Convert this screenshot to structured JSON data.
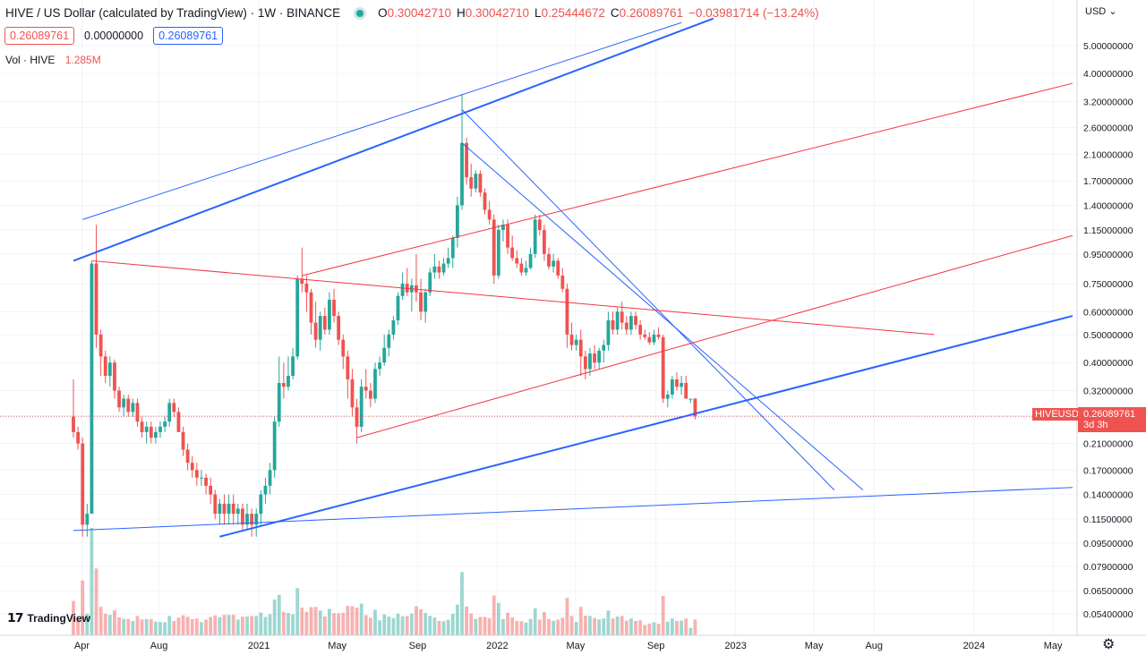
{
  "header": {
    "title": "HIVE / US Dollar (calculated by TradingView) · 1W · BINANCE",
    "o_label": "O",
    "o_value": "0.30042710",
    "h_label": "H",
    "h_value": "0.30042710",
    "l_label": "L",
    "l_value": "0.25444672",
    "c_label": "C",
    "c_value": "0.26089761",
    "change": "−0.03981714 (−13.24%)"
  },
  "boxes": {
    "sell": "0.26089761",
    "spread": "0.00000000",
    "buy": "0.26089761"
  },
  "volume": {
    "label": "Vol · HIVE",
    "value": "1.285M"
  },
  "logo": "TradingView",
  "axis": {
    "currency": "USD",
    "price_ticks": [
      "5.00000000",
      "4.00000000",
      "3.20000000",
      "2.60000000",
      "2.10000000",
      "1.70000000",
      "1.40000000",
      "1.15000000",
      "0.95000000",
      "0.75000000",
      "0.60000000",
      "0.50000000",
      "0.40000000",
      "0.32000000",
      "0.26000000",
      "0.21000000",
      "0.17000000",
      "0.14000000",
      "0.11500000",
      "0.09500000",
      "0.07900000",
      "0.06500000",
      "0.05400000"
    ],
    "time_ticks": [
      "Apr",
      "Aug",
      "2021",
      "May",
      "Sep",
      "2022",
      "May",
      "Sep",
      "2023",
      "May",
      "Aug",
      "2024",
      "May"
    ]
  },
  "last_price": {
    "symbol": "HIVEUSD",
    "price": "0.26089761",
    "countdown": "3d 3h"
  },
  "colors": {
    "up": "#26a69a",
    "down": "#ef5350",
    "trend_blue": "#2962ff",
    "trend_red": "#f23645"
  },
  "chart_data": {
    "type": "candlestick",
    "symbol": "HIVEUSD",
    "interval": "1W",
    "y_scale": "log",
    "y_range": [
      0.05,
      5.8
    ],
    "x_range": [
      "2020-03-23",
      "2024-05-31"
    ],
    "grid": true,
    "last_close": 0.26089761,
    "ohlc_weeks": [
      [
        "2020-03-23",
        0.26,
        0.35,
        0.22,
        0.23
      ],
      [
        "2020-03-30",
        0.23,
        0.24,
        0.2,
        0.21
      ],
      [
        "2020-04-06",
        0.21,
        0.22,
        0.1,
        0.11
      ],
      [
        "2020-04-13",
        0.11,
        0.13,
        0.1,
        0.12
      ],
      [
        "2020-04-20",
        0.12,
        0.9,
        0.12,
        0.88
      ],
      [
        "2020-04-27",
        0.88,
        1.2,
        0.45,
        0.5
      ],
      [
        "2020-05-04",
        0.5,
        0.52,
        0.36,
        0.42
      ],
      [
        "2020-05-11",
        0.42,
        0.44,
        0.34,
        0.36
      ],
      [
        "2020-05-18",
        0.36,
        0.42,
        0.33,
        0.4
      ],
      [
        "2020-05-25",
        0.4,
        0.41,
        0.3,
        0.32
      ],
      [
        "2020-06-01",
        0.32,
        0.33,
        0.27,
        0.28
      ],
      [
        "2020-06-08",
        0.28,
        0.31,
        0.26,
        0.3
      ],
      [
        "2020-06-15",
        0.3,
        0.31,
        0.26,
        0.27
      ],
      [
        "2020-06-22",
        0.27,
        0.3,
        0.26,
        0.29
      ],
      [
        "2020-06-29",
        0.29,
        0.3,
        0.24,
        0.25
      ],
      [
        "2020-07-06",
        0.25,
        0.26,
        0.22,
        0.23
      ],
      [
        "2020-07-13",
        0.23,
        0.25,
        0.21,
        0.24
      ],
      [
        "2020-07-20",
        0.24,
        0.25,
        0.21,
        0.22
      ],
      [
        "2020-07-27",
        0.22,
        0.24,
        0.21,
        0.23
      ],
      [
        "2020-08-03",
        0.23,
        0.25,
        0.22,
        0.24
      ],
      [
        "2020-08-10",
        0.24,
        0.26,
        0.23,
        0.25
      ],
      [
        "2020-08-17",
        0.25,
        0.3,
        0.24,
        0.29
      ],
      [
        "2020-08-24",
        0.29,
        0.3,
        0.26,
        0.27
      ],
      [
        "2020-08-31",
        0.27,
        0.28,
        0.23,
        0.23
      ],
      [
        "2020-09-07",
        0.23,
        0.24,
        0.19,
        0.2
      ],
      [
        "2020-09-14",
        0.2,
        0.21,
        0.17,
        0.18
      ],
      [
        "2020-09-21",
        0.18,
        0.19,
        0.16,
        0.17
      ],
      [
        "2020-09-28",
        0.17,
        0.18,
        0.15,
        0.16
      ],
      [
        "2020-10-05",
        0.16,
        0.17,
        0.15,
        0.16
      ],
      [
        "2020-10-12",
        0.16,
        0.165,
        0.14,
        0.15
      ],
      [
        "2020-10-19",
        0.15,
        0.16,
        0.13,
        0.14
      ],
      [
        "2020-10-26",
        0.14,
        0.145,
        0.115,
        0.12
      ],
      [
        "2020-11-02",
        0.12,
        0.135,
        0.11,
        0.13
      ],
      [
        "2020-11-09",
        0.13,
        0.14,
        0.11,
        0.12
      ],
      [
        "2020-11-16",
        0.12,
        0.14,
        0.11,
        0.13
      ],
      [
        "2020-11-23",
        0.13,
        0.14,
        0.11,
        0.12
      ],
      [
        "2020-11-30",
        0.12,
        0.13,
        0.11,
        0.125
      ],
      [
        "2020-12-07",
        0.125,
        0.13,
        0.105,
        0.11
      ],
      [
        "2020-12-14",
        0.11,
        0.13,
        0.105,
        0.12
      ],
      [
        "2020-12-21",
        0.12,
        0.125,
        0.1,
        0.11
      ],
      [
        "2020-12-28",
        0.11,
        0.125,
        0.1,
        0.12
      ],
      [
        "2021-01-04",
        0.12,
        0.145,
        0.11,
        0.14
      ],
      [
        "2021-01-11",
        0.14,
        0.16,
        0.13,
        0.15
      ],
      [
        "2021-01-18",
        0.15,
        0.18,
        0.14,
        0.17
      ],
      [
        "2021-01-25",
        0.17,
        0.26,
        0.16,
        0.25
      ],
      [
        "2021-02-01",
        0.25,
        0.42,
        0.24,
        0.34
      ],
      [
        "2021-02-08",
        0.34,
        0.4,
        0.3,
        0.33
      ],
      [
        "2021-02-15",
        0.33,
        0.42,
        0.32,
        0.36
      ],
      [
        "2021-02-22",
        0.36,
        0.45,
        0.35,
        0.42
      ],
      [
        "2021-03-01",
        0.42,
        0.8,
        0.41,
        0.78
      ],
      [
        "2021-03-08",
        0.78,
        1.0,
        0.7,
        0.75
      ],
      [
        "2021-03-15",
        0.75,
        0.8,
        0.6,
        0.7
      ],
      [
        "2021-03-22",
        0.7,
        0.72,
        0.5,
        0.55
      ],
      [
        "2021-03-29",
        0.55,
        0.65,
        0.45,
        0.48
      ],
      [
        "2021-04-05",
        0.48,
        0.6,
        0.44,
        0.58
      ],
      [
        "2021-04-12",
        0.58,
        0.62,
        0.5,
        0.52
      ],
      [
        "2021-04-19",
        0.52,
        0.7,
        0.5,
        0.66
      ],
      [
        "2021-04-26",
        0.66,
        0.72,
        0.55,
        0.58
      ],
      [
        "2021-05-03",
        0.58,
        0.6,
        0.46,
        0.48
      ],
      [
        "2021-05-10",
        0.48,
        0.5,
        0.38,
        0.42
      ],
      [
        "2021-05-17",
        0.42,
        0.44,
        0.3,
        0.35
      ],
      [
        "2021-05-24",
        0.35,
        0.38,
        0.26,
        0.28
      ],
      [
        "2021-05-31",
        0.28,
        0.3,
        0.21,
        0.24
      ],
      [
        "2021-06-07",
        0.24,
        0.35,
        0.23,
        0.33
      ],
      [
        "2021-06-14",
        0.33,
        0.38,
        0.3,
        0.32
      ],
      [
        "2021-06-21",
        0.32,
        0.34,
        0.28,
        0.3
      ],
      [
        "2021-06-28",
        0.3,
        0.4,
        0.29,
        0.38
      ],
      [
        "2021-07-05",
        0.38,
        0.42,
        0.36,
        0.4
      ],
      [
        "2021-07-12",
        0.4,
        0.5,
        0.39,
        0.45
      ],
      [
        "2021-07-19",
        0.45,
        0.52,
        0.42,
        0.5
      ],
      [
        "2021-07-26",
        0.5,
        0.58,
        0.48,
        0.56
      ],
      [
        "2021-08-02",
        0.56,
        0.7,
        0.54,
        0.68
      ],
      [
        "2021-08-09",
        0.68,
        0.82,
        0.66,
        0.75
      ],
      [
        "2021-08-16",
        0.75,
        0.85,
        0.68,
        0.7
      ],
      [
        "2021-08-23",
        0.7,
        0.78,
        0.6,
        0.74
      ],
      [
        "2021-08-30",
        0.74,
        0.95,
        0.65,
        0.7
      ],
      [
        "2021-09-06",
        0.7,
        0.78,
        0.56,
        0.6
      ],
      [
        "2021-09-13",
        0.6,
        0.72,
        0.55,
        0.7
      ],
      [
        "2021-09-20",
        0.7,
        0.85,
        0.68,
        0.82
      ],
      [
        "2021-09-27",
        0.82,
        0.95,
        0.78,
        0.86
      ],
      [
        "2021-10-04",
        0.86,
        0.9,
        0.78,
        0.82
      ],
      [
        "2021-10-11",
        0.82,
        0.92,
        0.8,
        0.88
      ],
      [
        "2021-10-18",
        0.88,
        1.0,
        0.85,
        0.92
      ],
      [
        "2021-10-25",
        0.92,
        1.1,
        0.85,
        1.08
      ],
      [
        "2021-11-01",
        1.08,
        1.5,
        1.0,
        1.4
      ],
      [
        "2021-11-08",
        1.4,
        3.4,
        1.35,
        2.3
      ],
      [
        "2021-11-15",
        2.3,
        2.4,
        1.65,
        1.75
      ],
      [
        "2021-11-22",
        1.75,
        1.95,
        1.5,
        1.6
      ],
      [
        "2021-11-29",
        1.6,
        1.85,
        1.55,
        1.8
      ],
      [
        "2021-12-06",
        1.8,
        1.85,
        1.5,
        1.55
      ],
      [
        "2021-12-13",
        1.55,
        1.6,
        1.3,
        1.35
      ],
      [
        "2021-12-20",
        1.35,
        1.45,
        1.2,
        1.25
      ],
      [
        "2021-12-27",
        1.25,
        1.3,
        0.75,
        0.8
      ],
      [
        "2022-01-03",
        0.8,
        1.2,
        0.78,
        1.15
      ],
      [
        "2022-01-10",
        1.15,
        1.25,
        1.05,
        1.2
      ],
      [
        "2022-01-17",
        1.2,
        1.25,
        0.95,
        1.0
      ],
      [
        "2022-01-24",
        1.0,
        1.1,
        0.9,
        0.92
      ],
      [
        "2022-01-31",
        0.92,
        0.98,
        0.85,
        0.88
      ],
      [
        "2022-02-07",
        0.88,
        0.92,
        0.8,
        0.82
      ],
      [
        "2022-02-14",
        0.82,
        0.9,
        0.8,
        0.85
      ],
      [
        "2022-02-21",
        0.85,
        1.0,
        0.84,
        0.95
      ],
      [
        "2022-02-28",
        0.95,
        1.3,
        0.92,
        1.25
      ],
      [
        "2022-03-07",
        1.25,
        1.3,
        1.1,
        1.15
      ],
      [
        "2022-03-14",
        1.15,
        1.2,
        0.9,
        0.95
      ],
      [
        "2022-03-21",
        0.95,
        1.0,
        0.84,
        0.86
      ],
      [
        "2022-03-28",
        0.86,
        0.95,
        0.82,
        0.9
      ],
      [
        "2022-04-04",
        0.9,
        0.92,
        0.78,
        0.8
      ],
      [
        "2022-04-11",
        0.8,
        0.85,
        0.7,
        0.72
      ],
      [
        "2022-04-18",
        0.72,
        0.75,
        0.45,
        0.5
      ],
      [
        "2022-04-25",
        0.5,
        0.55,
        0.44,
        0.46
      ],
      [
        "2022-05-02",
        0.46,
        0.5,
        0.44,
        0.48
      ],
      [
        "2022-05-09",
        0.48,
        0.52,
        0.36,
        0.42
      ],
      [
        "2022-05-16",
        0.42,
        0.44,
        0.35,
        0.38
      ],
      [
        "2022-05-23",
        0.38,
        0.45,
        0.36,
        0.43
      ],
      [
        "2022-05-30",
        0.43,
        0.46,
        0.38,
        0.4
      ],
      [
        "2022-06-06",
        0.4,
        0.45,
        0.38,
        0.44
      ],
      [
        "2022-06-13",
        0.44,
        0.48,
        0.4,
        0.46
      ],
      [
        "2022-06-20",
        0.46,
        0.6,
        0.44,
        0.56
      ],
      [
        "2022-06-27",
        0.56,
        0.6,
        0.5,
        0.52
      ],
      [
        "2022-07-04",
        0.52,
        0.62,
        0.5,
        0.6
      ],
      [
        "2022-07-11",
        0.6,
        0.65,
        0.52,
        0.55
      ],
      [
        "2022-07-18",
        0.55,
        0.58,
        0.5,
        0.52
      ],
      [
        "2022-07-25",
        0.52,
        0.6,
        0.5,
        0.58
      ],
      [
        "2022-08-01",
        0.58,
        0.6,
        0.52,
        0.54
      ],
      [
        "2022-08-08",
        0.54,
        0.56,
        0.48,
        0.5
      ],
      [
        "2022-08-15",
        0.5,
        0.52,
        0.48,
        0.49
      ],
      [
        "2022-08-22",
        0.49,
        0.51,
        0.46,
        0.47
      ],
      [
        "2022-08-29",
        0.47,
        0.52,
        0.46,
        0.5
      ],
      [
        "2022-09-05",
        0.5,
        0.53,
        0.48,
        0.49
      ],
      [
        "2022-09-12",
        0.49,
        0.5,
        0.29,
        0.3
      ],
      [
        "2022-09-19",
        0.3,
        0.32,
        0.28,
        0.31
      ],
      [
        "2022-09-26",
        0.31,
        0.36,
        0.3,
        0.35
      ],
      [
        "2022-10-03",
        0.35,
        0.37,
        0.32,
        0.33
      ],
      [
        "2022-10-10",
        0.33,
        0.36,
        0.31,
        0.34
      ],
      [
        "2022-10-17",
        0.34,
        0.36,
        0.3,
        0.3
      ],
      [
        "2022-10-24",
        0.3,
        0.3,
        0.29,
        0.3
      ],
      [
        "2022-10-31",
        0.3004271,
        0.3004271,
        0.25444672,
        0.26089761
      ]
    ],
    "volume_unit": "M HIVE"
  }
}
